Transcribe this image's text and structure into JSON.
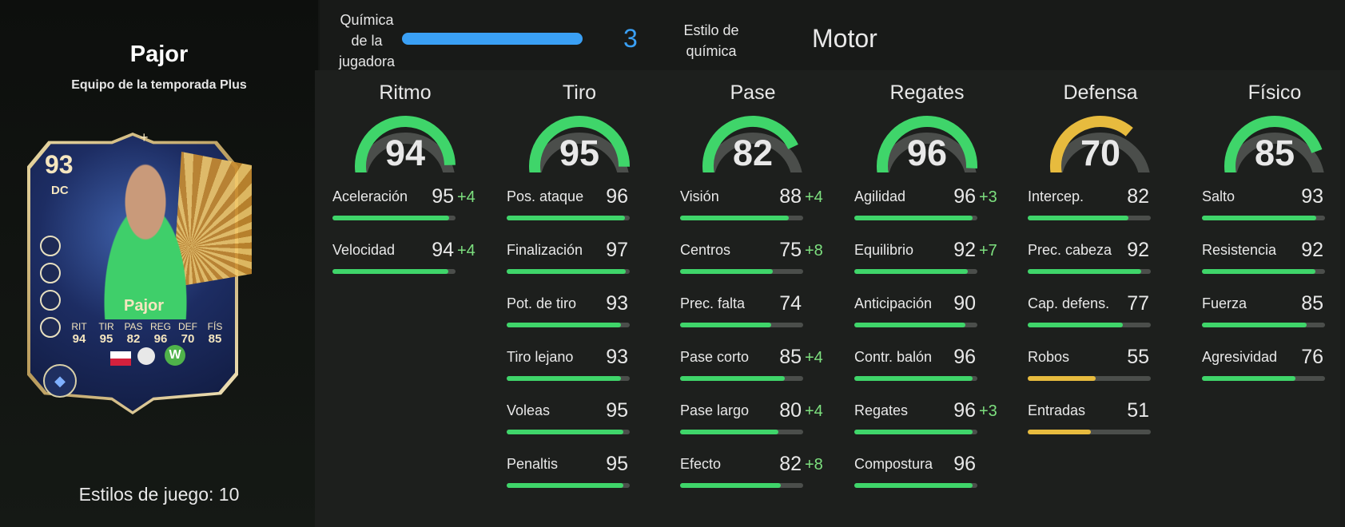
{
  "player": {
    "name": "Pajor",
    "subtitle": "Equipo de la temporada Plus",
    "playstyles": "Estilos de juego: 10"
  },
  "card": {
    "rating": "93",
    "position": "DC",
    "plus_mark": "+",
    "name": "Pajor",
    "club_initial": "W",
    "stats": [
      {
        "label": "RIT",
        "value": "94"
      },
      {
        "label": "TIR",
        "value": "95"
      },
      {
        "label": "PAS",
        "value": "82"
      },
      {
        "label": "REG",
        "value": "96"
      },
      {
        "label": "DEF",
        "value": "70"
      },
      {
        "label": "FÍS",
        "value": "85"
      }
    ]
  },
  "header": {
    "chemistry_label": "Química de la jugadora",
    "chemistry_value": "3",
    "chemistry_fraction": 1.0,
    "chem_style_label": "Estilo de química",
    "chem_style_value": "Motor"
  },
  "colors": {
    "green": "#3fd56a",
    "yellow": "#e7bb3e",
    "chem_blue": "#3aa0f5",
    "bonus": "#7de07f"
  },
  "categories": [
    {
      "title": "Ritmo",
      "value": 94,
      "color": "green",
      "attributes": [
        {
          "name": "Aceleración",
          "value": "95",
          "bonus": "+4"
        },
        {
          "name": "Velocidad",
          "value": "94",
          "bonus": "+4"
        }
      ]
    },
    {
      "title": "Tiro",
      "value": 95,
      "color": "green",
      "attributes": [
        {
          "name": "Pos. ataque",
          "value": "96",
          "bonus": ""
        },
        {
          "name": "Finalización",
          "value": "97",
          "bonus": ""
        },
        {
          "name": "Pot. de tiro",
          "value": "93",
          "bonus": ""
        },
        {
          "name": "Tiro lejano",
          "value": "93",
          "bonus": ""
        },
        {
          "name": "Voleas",
          "value": "95",
          "bonus": ""
        },
        {
          "name": "Penaltis",
          "value": "95",
          "bonus": ""
        }
      ]
    },
    {
      "title": "Pase",
      "value": 82,
      "color": "green",
      "attributes": [
        {
          "name": "Visión",
          "value": "88",
          "bonus": "+4"
        },
        {
          "name": "Centros",
          "value": "75",
          "bonus": "+8"
        },
        {
          "name": "Prec. falta",
          "value": "74",
          "bonus": ""
        },
        {
          "name": "Pase corto",
          "value": "85",
          "bonus": "+4"
        },
        {
          "name": "Pase largo",
          "value": "80",
          "bonus": "+4"
        },
        {
          "name": "Efecto",
          "value": "82",
          "bonus": "+8"
        }
      ]
    },
    {
      "title": "Regates",
      "value": 96,
      "color": "green",
      "attributes": [
        {
          "name": "Agilidad",
          "value": "96",
          "bonus": "+3"
        },
        {
          "name": "Equilibrio",
          "value": "92",
          "bonus": "+7"
        },
        {
          "name": "Anticipación",
          "value": "90",
          "bonus": ""
        },
        {
          "name": "Contr. balón",
          "value": "96",
          "bonus": ""
        },
        {
          "name": "Regates",
          "value": "96",
          "bonus": "+3"
        },
        {
          "name": "Compostura",
          "value": "96",
          "bonus": ""
        }
      ]
    },
    {
      "title": "Defensa",
      "value": 70,
      "color": "yellow",
      "attributes": [
        {
          "name": "Intercep.",
          "value": "82",
          "bonus": ""
        },
        {
          "name": "Prec. cabeza",
          "value": "92",
          "bonus": ""
        },
        {
          "name": "Cap. defens.",
          "value": "77",
          "bonus": ""
        },
        {
          "name": "Robos",
          "value": "55",
          "bonus": ""
        },
        {
          "name": "Entradas",
          "value": "51",
          "bonus": ""
        }
      ]
    },
    {
      "title": "Físico",
      "value": 85,
      "color": "green",
      "attributes": [
        {
          "name": "Salto",
          "value": "93",
          "bonus": ""
        },
        {
          "name": "Resistencia",
          "value": "92",
          "bonus": ""
        },
        {
          "name": "Fuerza",
          "value": "85",
          "bonus": ""
        },
        {
          "name": "Agresividad",
          "value": "76",
          "bonus": ""
        }
      ]
    }
  ]
}
